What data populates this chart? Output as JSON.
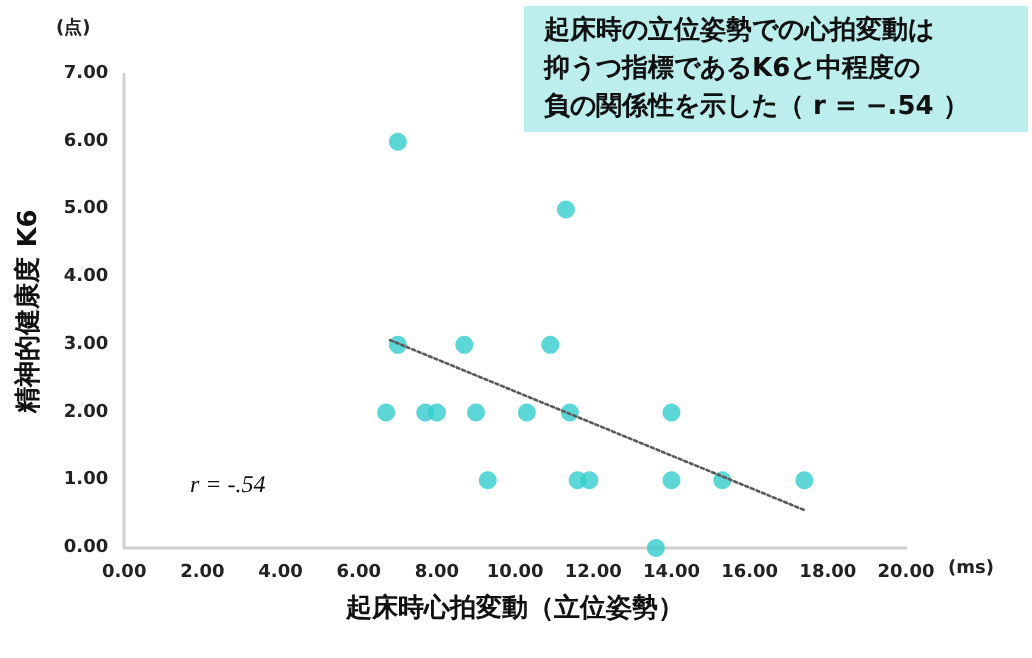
{
  "chart_data": {
    "type": "scatter",
    "xlabel": "起床時心拍変動（立位姿勢）",
    "ylabel": "精神的健康度 K6",
    "annotations": [
      "起床時の立位姿勢での心拍変動は",
      "抑うつ指標であるK6と中程度の",
      "負の関係性を示した（ r = −.54 ）",
      "r = -.54",
      "(点)",
      "(ms)"
    ],
    "series": [
      {
        "color": "#33cccc",
        "x": [
          7.0,
          11.3,
          7.0,
          8.7,
          10.9,
          6.7,
          7.7,
          8.0,
          9.0,
          10.3,
          11.4,
          14.0,
          9.3,
          11.6,
          11.9,
          14.0,
          15.3,
          17.4,
          13.6
        ],
        "values": [
          6,
          5,
          3,
          3,
          3,
          2,
          2,
          2,
          2,
          2,
          2,
          2,
          1,
          1,
          1,
          1,
          1,
          1,
          0
        ]
      },
      {
        "type": "line",
        "color": "#595959",
        "line_style": "dotted",
        "marker": "none",
        "x": [
          6.8,
          17.4
        ],
        "values": [
          3.07,
          0.56
        ]
      }
    ],
    "xlim": [
      0,
      20
    ],
    "xticks": [
      {
        "value": 0,
        "label": "0.00"
      },
      {
        "value": 2,
        "label": "2.00"
      },
      {
        "value": 4,
        "label": "4.00"
      },
      {
        "value": 6,
        "label": "6.00"
      },
      {
        "value": 8,
        "label": "8.00"
      },
      {
        "value": 10,
        "label": "10.00"
      },
      {
        "value": 12,
        "label": "12.00"
      },
      {
        "value": 14,
        "label": "14.00"
      },
      {
        "value": 16,
        "label": "16.00"
      },
      {
        "value": 18,
        "label": "18.00"
      },
      {
        "value": 20,
        "label": "20.00"
      }
    ],
    "ylim": [
      0,
      7
    ],
    "yticks": [
      {
        "value": 0,
        "label": "0.00"
      },
      {
        "value": 1,
        "label": "1.00"
      },
      {
        "value": 2,
        "label": "2.00"
      },
      {
        "value": 3,
        "label": "3.00"
      },
      {
        "value": 4,
        "label": "4.00"
      },
      {
        "value": 5,
        "label": "5.00"
      },
      {
        "value": 6,
        "label": "6.00"
      },
      {
        "value": 7,
        "label": "7.00"
      }
    ],
    "grid": false,
    "marker": "circle"
  }
}
